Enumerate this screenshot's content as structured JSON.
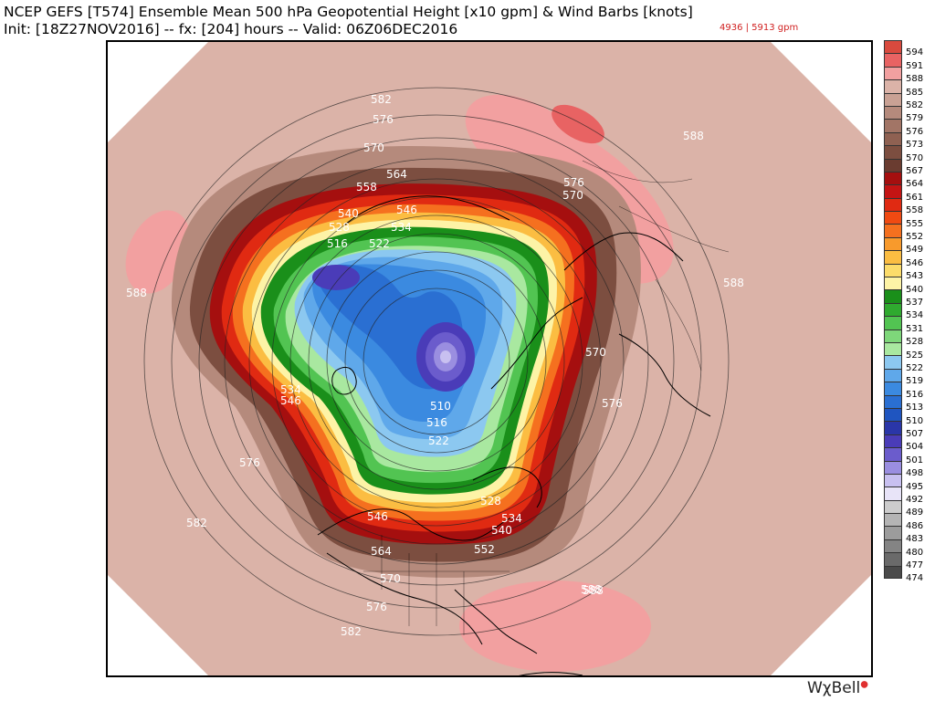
{
  "header": {
    "title_line1": "NCEP GEFS [T574] Ensemble Mean 500 hPa Geopotential Height [x10 gpm] & Wind Barbs [knots]",
    "title_line2": "Init: [18Z27NOV2016] -- fx: [204] hours -- Valid: 06Z06DEC2016",
    "range_text": "4936 | 5913 gpm",
    "range_color": "#d02020"
  },
  "colorbar": {
    "levels": [
      {
        "label": "594",
        "color": "#d94a3e"
      },
      {
        "label": "591",
        "color": "#e86363"
      },
      {
        "label": "588",
        "color": "#f2a0a0"
      },
      {
        "label": "585",
        "color": "#dbb3a8"
      },
      {
        "label": "582",
        "color": "#c9a194"
      },
      {
        "label": "579",
        "color": "#b58a7c"
      },
      {
        "label": "576",
        "color": "#a27566"
      },
      {
        "label": "573",
        "color": "#8f6152"
      },
      {
        "label": "570",
        "color": "#7c4e40"
      },
      {
        "label": "567",
        "color": "#6a3c30"
      },
      {
        "label": "564",
        "color": "#a50f0f"
      },
      {
        "label": "561",
        "color": "#c41414"
      },
      {
        "label": "558",
        "color": "#e02a12"
      },
      {
        "label": "555",
        "color": "#f04a12"
      },
      {
        "label": "552",
        "color": "#f5701f"
      },
      {
        "label": "549",
        "color": "#f89a2c"
      },
      {
        "label": "546",
        "color": "#fbbd42"
      },
      {
        "label": "543",
        "color": "#fcdc6a"
      },
      {
        "label": "540",
        "color": "#fdf3a6"
      },
      {
        "label": "537",
        "color": "#1a8f1a"
      },
      {
        "label": "534",
        "color": "#2faa2f"
      },
      {
        "label": "531",
        "color": "#52c452"
      },
      {
        "label": "528",
        "color": "#7ed77a"
      },
      {
        "label": "525",
        "color": "#a9e8a0"
      },
      {
        "label": "522",
        "color": "#8cc8f0"
      },
      {
        "label": "519",
        "color": "#5fa8ea"
      },
      {
        "label": "516",
        "color": "#3b8ae0"
      },
      {
        "label": "513",
        "color": "#2a6fd2"
      },
      {
        "label": "510",
        "color": "#1f55c0"
      },
      {
        "label": "507",
        "color": "#2a36a8"
      },
      {
        "label": "504",
        "color": "#4a3cb8"
      },
      {
        "label": "501",
        "color": "#6b5ccc"
      },
      {
        "label": "498",
        "color": "#9a8ee0"
      },
      {
        "label": "495",
        "color": "#c8c0f0"
      },
      {
        "label": "492",
        "color": "#e8e4f8"
      },
      {
        "label": "489",
        "color": "#cccccc"
      },
      {
        "label": "486",
        "color": "#b4b4b4"
      },
      {
        "label": "483",
        "color": "#9c9c9c"
      },
      {
        "label": "480",
        "color": "#848484"
      },
      {
        "label": "477",
        "color": "#6a6a6a"
      },
      {
        "label": "474",
        "color": "#4a4a4a"
      }
    ]
  },
  "map": {
    "contour_labels": [
      "582",
      "576",
      "570",
      "564",
      "558",
      "540",
      "546",
      "528",
      "534",
      "516",
      "522",
      "588",
      "576",
      "570",
      "588",
      "588",
      "570",
      "576",
      "588",
      "534",
      "546",
      "576",
      "510",
      "516",
      "522",
      "582",
      "528",
      "534",
      "540",
      "546",
      "564",
      "552",
      "570",
      "576",
      "582",
      "588"
    ]
  },
  "branding": {
    "logo_text": "WχBell",
    "logo_dot": "●"
  }
}
